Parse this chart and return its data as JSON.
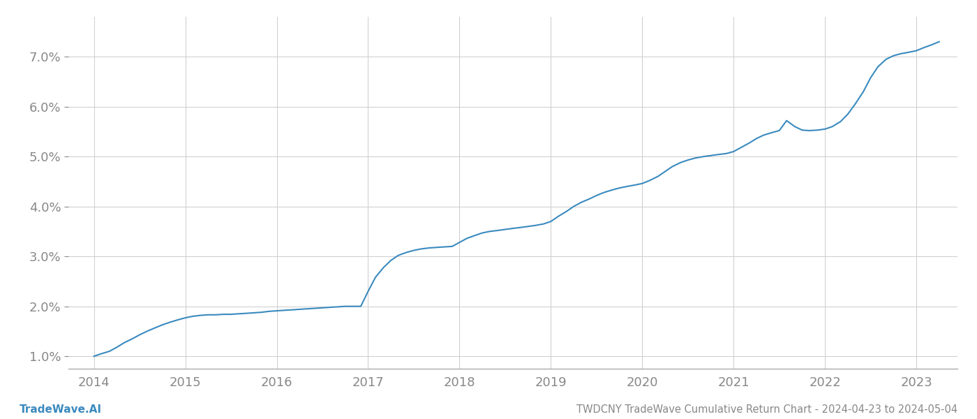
{
  "title": "TWDCNY TradeWave Cumulative Return Chart - 2024-04-23 to 2024-05-04",
  "watermark": "TradeWave.AI",
  "line_color": "#3a8abf",
  "background_color": "#ffffff",
  "grid_color": "#cccccc",
  "x_data": [
    2014.0,
    2014.08,
    2014.17,
    2014.25,
    2014.33,
    2014.42,
    2014.5,
    2014.58,
    2014.67,
    2014.75,
    2014.83,
    2014.92,
    2015.0,
    2015.08,
    2015.17,
    2015.25,
    2015.33,
    2015.42,
    2015.5,
    2015.58,
    2015.67,
    2015.75,
    2015.83,
    2015.92,
    2016.0,
    2016.08,
    2016.17,
    2016.25,
    2016.33,
    2016.42,
    2016.5,
    2016.58,
    2016.67,
    2016.75,
    2016.83,
    2016.92,
    2017.0,
    2017.08,
    2017.17,
    2017.25,
    2017.33,
    2017.42,
    2017.5,
    2017.58,
    2017.67,
    2017.75,
    2017.83,
    2017.92,
    2018.0,
    2018.08,
    2018.17,
    2018.25,
    2018.33,
    2018.42,
    2018.5,
    2018.58,
    2018.67,
    2018.75,
    2018.83,
    2018.92,
    2019.0,
    2019.08,
    2019.17,
    2019.25,
    2019.33,
    2019.42,
    2019.5,
    2019.58,
    2019.67,
    2019.75,
    2019.83,
    2019.92,
    2020.0,
    2020.08,
    2020.17,
    2020.25,
    2020.33,
    2020.42,
    2020.5,
    2020.58,
    2020.67,
    2020.75,
    2020.83,
    2020.92,
    2021.0,
    2021.08,
    2021.17,
    2021.25,
    2021.33,
    2021.42,
    2021.5,
    2021.58,
    2021.67,
    2021.75,
    2021.83,
    2021.92,
    2022.0,
    2022.08,
    2022.17,
    2022.25,
    2022.33,
    2022.42,
    2022.5,
    2022.58,
    2022.67,
    2022.75,
    2022.83,
    2022.92,
    2023.0,
    2023.08,
    2023.17,
    2023.25
  ],
  "y_data": [
    1.0,
    1.05,
    1.1,
    1.18,
    1.27,
    1.35,
    1.43,
    1.5,
    1.57,
    1.63,
    1.68,
    1.73,
    1.77,
    1.8,
    1.82,
    1.83,
    1.83,
    1.84,
    1.84,
    1.85,
    1.86,
    1.87,
    1.88,
    1.9,
    1.91,
    1.92,
    1.93,
    1.94,
    1.95,
    1.96,
    1.97,
    1.98,
    1.99,
    2.0,
    2.0,
    2.0,
    2.3,
    2.58,
    2.78,
    2.92,
    3.02,
    3.08,
    3.12,
    3.15,
    3.17,
    3.18,
    3.19,
    3.2,
    3.28,
    3.36,
    3.42,
    3.47,
    3.5,
    3.52,
    3.54,
    3.56,
    3.58,
    3.6,
    3.62,
    3.65,
    3.7,
    3.8,
    3.9,
    4.0,
    4.08,
    4.15,
    4.22,
    4.28,
    4.33,
    4.37,
    4.4,
    4.43,
    4.46,
    4.52,
    4.6,
    4.7,
    4.8,
    4.88,
    4.93,
    4.97,
    5.0,
    5.02,
    5.04,
    5.06,
    5.1,
    5.18,
    5.27,
    5.36,
    5.43,
    5.48,
    5.52,
    5.72,
    5.6,
    5.53,
    5.52,
    5.53,
    5.55,
    5.6,
    5.7,
    5.85,
    6.05,
    6.3,
    6.58,
    6.8,
    6.95,
    7.02,
    7.06,
    7.09,
    7.12,
    7.18,
    7.24,
    7.3
  ],
  "ylim": [
    0.75,
    7.8
  ],
  "xlim": [
    2013.72,
    2023.45
  ],
  "yticks": [
    1.0,
    2.0,
    3.0,
    4.0,
    5.0,
    6.0,
    7.0
  ],
  "xticks": [
    2014,
    2015,
    2016,
    2017,
    2018,
    2019,
    2020,
    2021,
    2022,
    2023
  ],
  "tick_label_color": "#888888",
  "title_color": "#888888",
  "watermark_color": "#3a8abf",
  "line_width": 1.5,
  "axis_color": "#aaaaaa"
}
